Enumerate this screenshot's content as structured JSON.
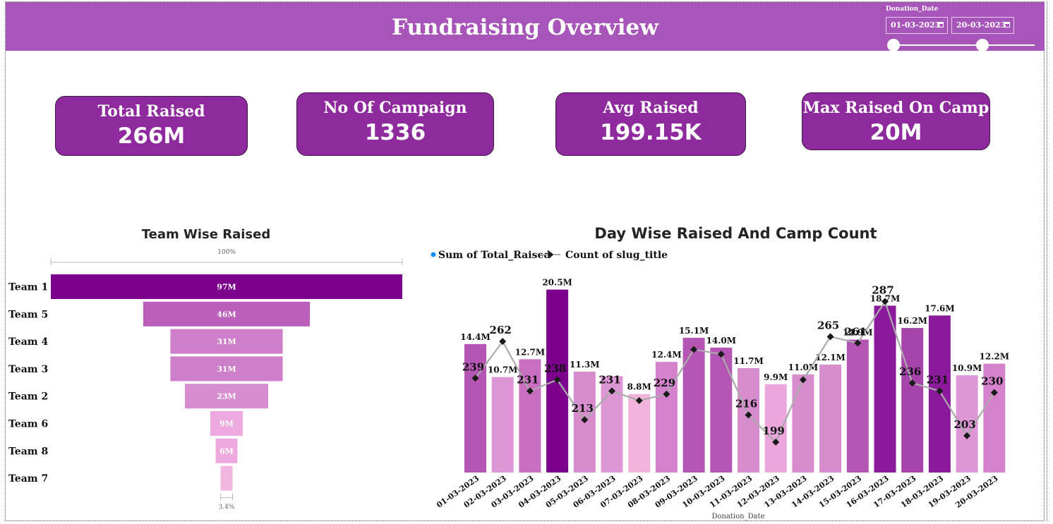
{
  "header": {
    "title": "Fundraising Overview",
    "slicer": {
      "label": "Donation_Date",
      "start": "01-03-2023",
      "end": "20-03-2023"
    }
  },
  "kpis": [
    {
      "label": "Total Raised",
      "value": "266M"
    },
    {
      "label": "No Of Campaign",
      "value": "1336"
    },
    {
      "label": "Avg Raised",
      "value": "199.15K"
    },
    {
      "label": "Max Raised On Camp",
      "value": "20M"
    }
  ],
  "colors": {
    "header": "#a855b9",
    "kpi": "#8e2a9e",
    "funnel_top": "#7b008b",
    "line": "#aaaaaa",
    "marker": "#1a1a1a"
  },
  "chart_data": [
    {
      "type": "bar",
      "subtype": "funnel",
      "title": "Team Wise Raised",
      "top_label": "100%",
      "bottom_label": "3.4%",
      "categories": [
        "Team 1",
        "Team 5",
        "Team 4",
        "Team 3",
        "Team 2",
        "Team 6",
        "Team 8",
        "Team 7"
      ],
      "values": [
        97,
        46,
        31,
        31,
        23,
        9,
        6,
        3.3
      ],
      "data_labels": [
        "97M",
        "46M",
        "31M",
        "31M",
        "23M",
        "9M",
        "6M",
        ""
      ],
      "colors": [
        "#7b008b",
        "#bb5fbb",
        "#cf7fca",
        "#cf7fca",
        "#d68ed1",
        "#edaadf",
        "#eeaade",
        "#f2b6e0"
      ]
    },
    {
      "type": "bar",
      "subtype": "combo-bar-line",
      "title": "Day Wise Raised And Camp Count",
      "xlabel": "Donation_Date",
      "categories": [
        "01-03-2023",
        "02-03-2023",
        "03-03-2023",
        "04-03-2023",
        "05-03-2023",
        "06-03-2023",
        "07-03-2023",
        "08-03-2023",
        "09-03-2023",
        "10-03-2023",
        "11-03-2023",
        "12-03-2023",
        "13-03-2023",
        "14-03-2023",
        "15-03-2023",
        "16-03-2023",
        "17-03-2023",
        "18-03-2023",
        "19-03-2023",
        "20-03-2023"
      ],
      "series": [
        {
          "name": "Sum of Total_Raised",
          "kind": "bar",
          "values": [
            14.4,
            10.7,
            12.7,
            20.5,
            11.3,
            10.8,
            8.8,
            12.4,
            15.1,
            14.0,
            11.7,
            9.9,
            11.0,
            12.1,
            14.9,
            18.7,
            16.2,
            17.6,
            10.9,
            12.2
          ],
          "labels": [
            "14.4M",
            "10.7M",
            "12.7M",
            "20.5M",
            "11.3M",
            "",
            "8.8M",
            "12.4M",
            "15.1M",
            "14.0M",
            "11.7M",
            "9.9M",
            "11.0M",
            "12.1M",
            "14.9M",
            "18.7M",
            "16.2M",
            "17.6M",
            "10.9M",
            "12.2M"
          ],
          "colors": [
            "#b556b5",
            "#de97d6",
            "#c96fc2",
            "#7b008b",
            "#d78ccd",
            "#de97d6",
            "#f2b4dc",
            "#d582cd",
            "#b556b5",
            "#b556b5",
            "#d78ccd",
            "#eba6dc",
            "#d78ccd",
            "#d78ccd",
            "#b556b5",
            "#8c1a9c",
            "#a744ac",
            "#8c1a9c",
            "#de97d6",
            "#d582cd"
          ],
          "ylim": [
            0,
            21.5
          ]
        },
        {
          "name": "Count of slug_title",
          "kind": "line",
          "values": [
            239,
            262,
            231,
            238,
            213,
            231,
            225,
            229,
            257,
            254,
            216,
            199,
            238,
            265,
            261,
            287,
            236,
            231,
            203,
            230
          ],
          "labels": [
            "239",
            "262",
            "231",
            "238",
            "213",
            "231",
            "",
            "229",
            "",
            "",
            "216",
            "199",
            "",
            "265",
            "261",
            "287",
            "236",
            "231",
            "203",
            "230"
          ],
          "ylim": [
            180,
            300
          ]
        }
      ]
    }
  ]
}
